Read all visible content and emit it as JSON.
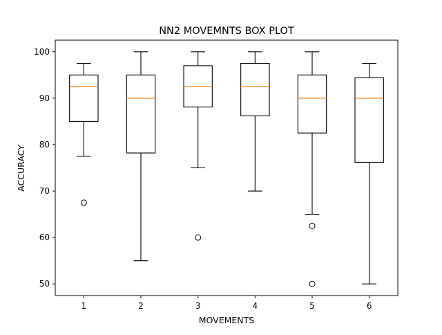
{
  "chart_data": {
    "type": "box",
    "title": "NN2 MOVEMNTS BOX PLOT",
    "xlabel": "MOVEMENTS",
    "ylabel": "ACCURACY",
    "categories": [
      "1",
      "2",
      "3",
      "4",
      "5",
      "6"
    ],
    "ylim": [
      47.5,
      102.5
    ],
    "yticks": [
      50,
      60,
      70,
      80,
      90,
      100
    ],
    "grid": false,
    "boxes": [
      {
        "category": "1",
        "whisker_low": 77.5,
        "q1": 85.0,
        "median": 92.5,
        "q3": 95.0,
        "whisker_high": 97.5,
        "outliers": [
          67.5
        ]
      },
      {
        "category": "2",
        "whisker_low": 55.0,
        "q1": 78.2,
        "median": 90.0,
        "q3": 95.0,
        "whisker_high": 100.0,
        "outliers": []
      },
      {
        "category": "3",
        "whisker_low": 75.0,
        "q1": 88.1,
        "median": 92.5,
        "q3": 97.0,
        "whisker_high": 100.0,
        "outliers": [
          60.0
        ]
      },
      {
        "category": "4",
        "whisker_low": 70.0,
        "q1": 86.2,
        "median": 92.5,
        "q3": 97.5,
        "whisker_high": 100.0,
        "outliers": []
      },
      {
        "category": "5",
        "whisker_low": 65.0,
        "q1": 82.5,
        "median": 90.0,
        "q3": 95.0,
        "whisker_high": 100.0,
        "outliers": [
          62.5,
          50.0
        ]
      },
      {
        "category": "6",
        "whisker_low": 50.0,
        "q1": 76.2,
        "median": 90.0,
        "q3": 94.4,
        "whisker_high": 97.5,
        "outliers": []
      }
    ],
    "colors": {
      "box": "#000000",
      "median": "#ff7f0e",
      "outlier": "#000000",
      "background": "#ffffff"
    }
  }
}
